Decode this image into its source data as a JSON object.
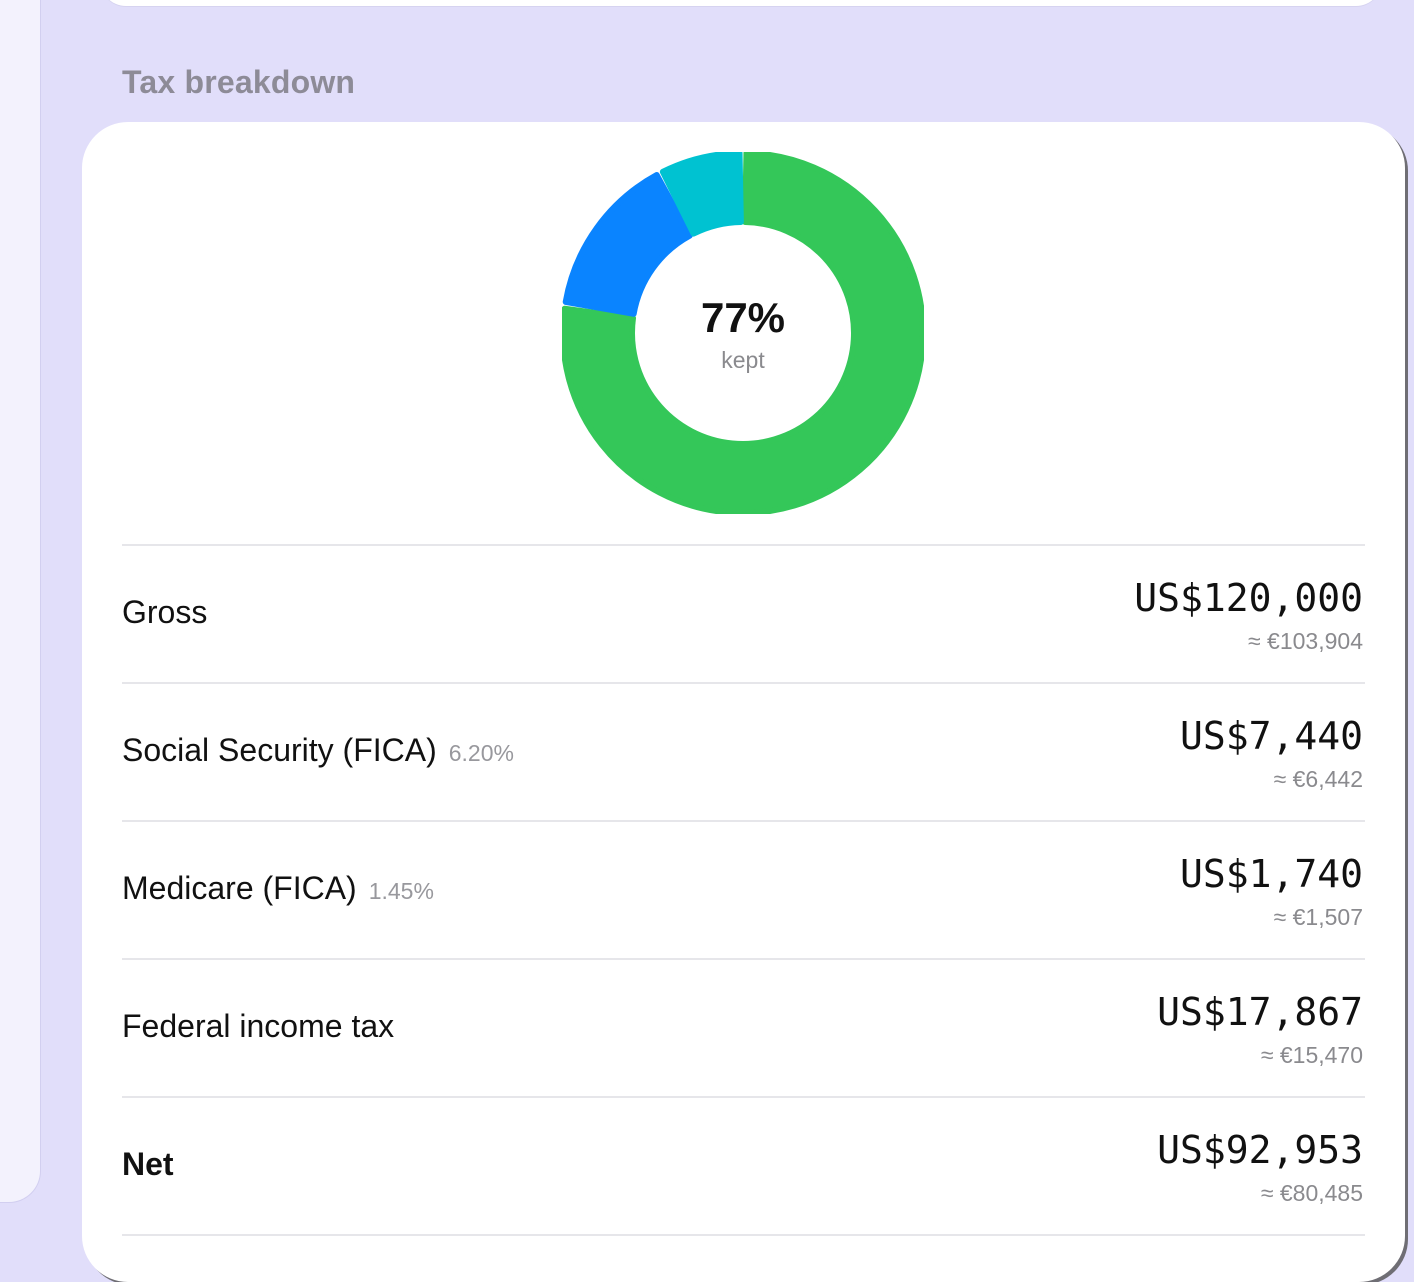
{
  "section": {
    "title": "Tax breakdown"
  },
  "donut": {
    "center_value": "77%",
    "center_label": "kept",
    "segments": [
      {
        "name": "kept",
        "share": 0.7746,
        "color": "#34c759"
      },
      {
        "name": "federal",
        "share": 0.1489,
        "color": "#0a84ff"
      },
      {
        "name": "fica",
        "share": 0.0765,
        "color": "#00c2d1"
      }
    ]
  },
  "rows": [
    {
      "label": "Gross",
      "pct": "",
      "amount": "US$120,000",
      "converted": "≈ €103,904",
      "bold": false
    },
    {
      "label": "Social Security (FICA)",
      "pct": "6.20%",
      "amount": "US$7,440",
      "converted": "≈ €6,442",
      "bold": false
    },
    {
      "label": "Medicare (FICA)",
      "pct": "1.45%",
      "amount": "US$1,740",
      "converted": "≈ €1,507",
      "bold": false
    },
    {
      "label": "Federal income tax",
      "pct": "",
      "amount": "US$17,867",
      "converted": "≈ €15,470",
      "bold": false
    },
    {
      "label": "Net",
      "pct": "",
      "amount": "US$92,953",
      "converted": "≈ €80,485",
      "bold": true
    }
  ]
}
